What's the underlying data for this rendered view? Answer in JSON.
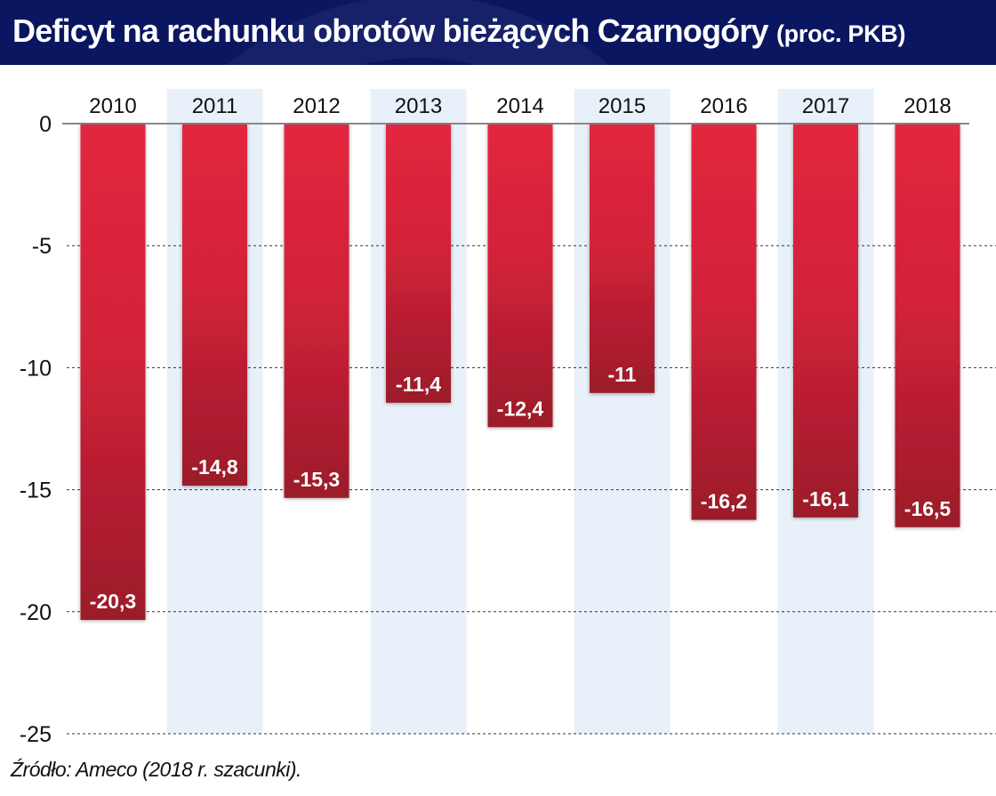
{
  "chart_data": {
    "type": "bar",
    "title": "Deficyt na rachunku obrotów bieżących Czarnogóry",
    "subtitle": "(proc. PKB)",
    "categories": [
      "2010",
      "2011",
      "2012",
      "2013",
      "2014",
      "2015",
      "2016",
      "2017",
      "2018"
    ],
    "values": [
      -20.3,
      -14.8,
      -15.3,
      -11.4,
      -12.4,
      -11,
      -16.2,
      -16.1,
      -16.5
    ],
    "data_labels": [
      "-20,3",
      "-14,8",
      "-15,3",
      "-11,4",
      "-12,4",
      "-11",
      "-16,2",
      "-16,1",
      "-16,5"
    ],
    "xlabel": "",
    "ylabel": "",
    "ylim": [
      -25,
      0
    ],
    "yticks": [
      0,
      -5,
      -10,
      -15,
      -20,
      -25
    ],
    "ytick_labels": [
      "0",
      "-5",
      "-10",
      "-15",
      "-20",
      "-25"
    ],
    "grid": true,
    "colors": {
      "bar_top": "#e3263f",
      "bar_bottom": "#9b1a2a",
      "title_bg": "#0b1660",
      "stripe": "#e8f0fa"
    }
  },
  "source": "Źródło: Ameco (2018 r. szacunki)."
}
